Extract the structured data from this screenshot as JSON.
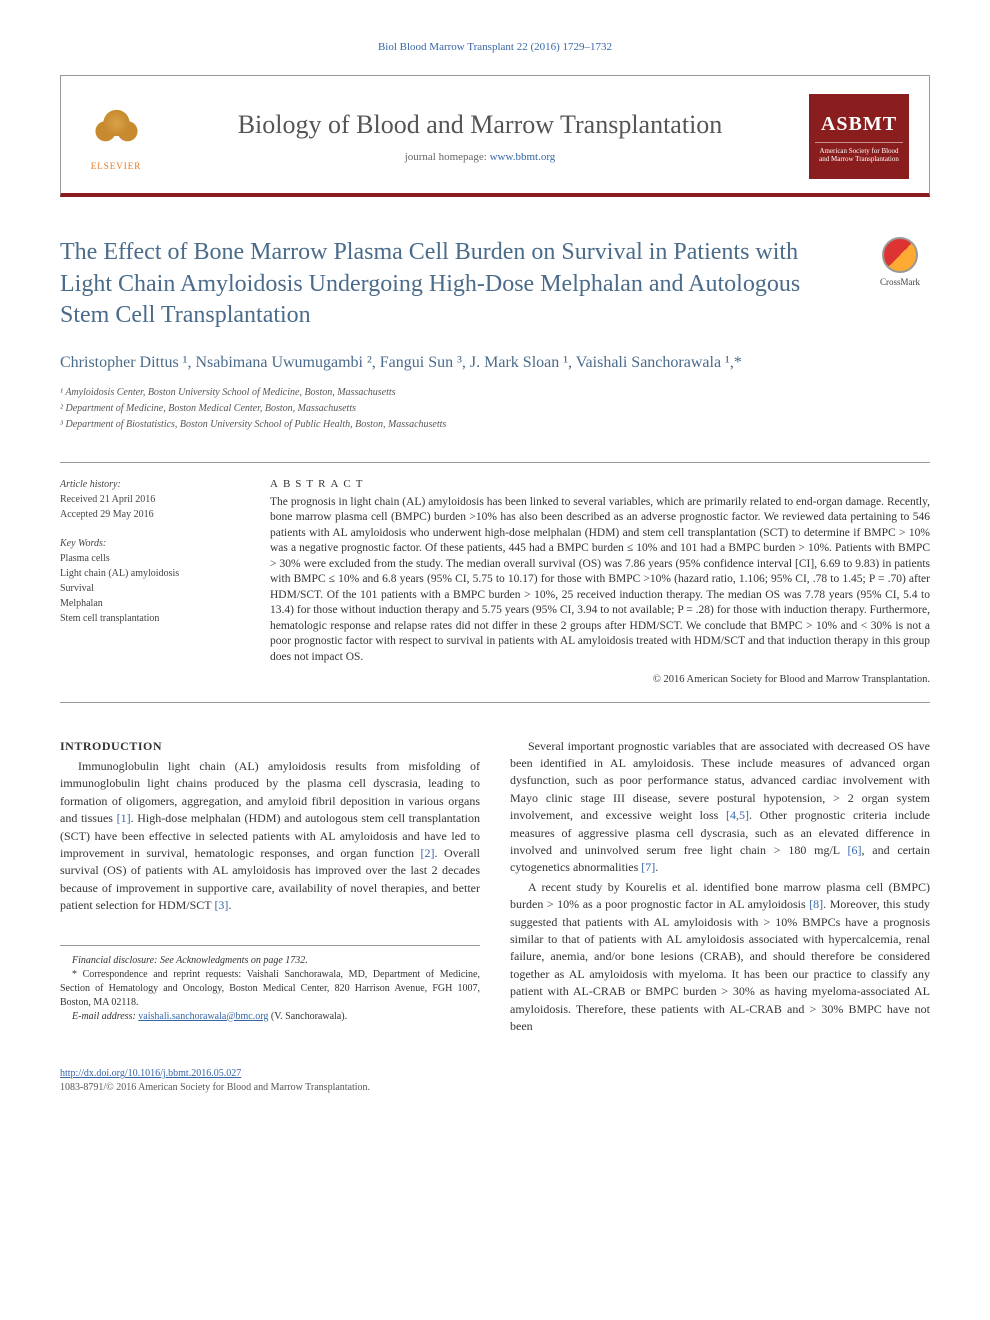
{
  "running_head": "Biol Blood Marrow Transplant 22 (2016) 1729–1732",
  "header": {
    "elsevier": "ELSEVIER",
    "journal_title": "Biology of Blood and Marrow Transplantation",
    "homepage_label": "journal homepage: ",
    "homepage_url": "www.bbmt.org",
    "asbmt_abbrev": "ASBMT",
    "asbmt_full": "American Society for Blood and Marrow Transplantation"
  },
  "crossmark_label": "CrossMark",
  "article": {
    "title": "The Effect of Bone Marrow Plasma Cell Burden on Survival in Patients with Light Chain Amyloidosis Undergoing High-Dose Melphalan and Autologous Stem Cell Transplantation",
    "authors_html": "Christopher Dittus ¹, Nsabimana Uwumugambi ², Fangui Sun ³, J. Mark Sloan ¹, Vaishali Sanchorawala ¹,*",
    "affiliations": [
      "¹ Amyloidosis Center, Boston University School of Medicine, Boston, Massachusetts",
      "² Department of Medicine, Boston Medical Center, Boston, Massachusetts",
      "³ Department of Biostatistics, Boston University School of Public Health, Boston, Massachusetts"
    ]
  },
  "meta": {
    "history_label": "Article history:",
    "received": "Received 21 April 2016",
    "accepted": "Accepted 29 May 2016",
    "keywords_label": "Key Words:",
    "keywords": [
      "Plasma cells",
      "Light chain (AL) amyloidosis",
      "Survival",
      "Melphalan",
      "Stem cell transplantation"
    ]
  },
  "abstract": {
    "head": "ABSTRACT",
    "text": "The prognosis in light chain (AL) amyloidosis has been linked to several variables, which are primarily related to end-organ damage. Recently, bone marrow plasma cell (BMPC) burden >10% has also been described as an adverse prognostic factor. We reviewed data pertaining to 546 patients with AL amyloidosis who underwent high-dose melphalan (HDM) and stem cell transplantation (SCT) to determine if BMPC > 10% was a negative prognostic factor. Of these patients, 445 had a BMPC burden ≤ 10% and 101 had a BMPC burden > 10%. Patients with BMPC > 30% were excluded from the study. The median overall survival (OS) was 7.86 years (95% confidence interval [CI], 6.69 to 9.83) in patients with BMPC ≤ 10% and 6.8 years (95% CI, 5.75 to 10.17) for those with BMPC >10% (hazard ratio, 1.106; 95% CI, .78 to 1.45; P = .70) after HDM/SCT. Of the 101 patients with a BMPC burden > 10%, 25 received induction therapy. The median OS was 7.78 years (95% CI, 5.4 to 13.4) for those without induction therapy and 5.75 years (95% CI, 3.94 to not available; P = .28) for those with induction therapy. Furthermore, hematologic response and relapse rates did not differ in these 2 groups after HDM/SCT. We conclude that BMPC > 10% and < 30% is not a poor prognostic factor with respect to survival in patients with AL amyloidosis treated with HDM/SCT and that induction therapy in this group does not impact OS.",
    "copyright": "© 2016 American Society for Blood and Marrow Transplantation."
  },
  "body": {
    "intro_head": "INTRODUCTION",
    "left_paras": [
      "Immunoglobulin light chain (AL) amyloidosis results from misfolding of immunoglobulin light chains produced by the plasma cell dyscrasia, leading to formation of oligomers, aggregation, and amyloid fibril deposition in various organs and tissues [1]. High-dose melphalan (HDM) and autologous stem cell transplantation (SCT) have been effective in selected patients with AL amyloidosis and have led to improvement in survival, hematologic responses, and organ function [2]. Overall survival (OS) of patients with AL amyloidosis has improved over the last 2 decades because of improvement in supportive care, availability of novel therapies, and better patient selection for HDM/SCT [3]."
    ],
    "right_paras": [
      "Several important prognostic variables that are associated with decreased OS have been identified in AL amyloidosis. These include measures of advanced organ dysfunction, such as poor performance status, advanced cardiac involvement with Mayo clinic stage III disease, severe postural hypotension, > 2 organ system involvement, and excessive weight loss [4,5]. Other prognostic criteria include measures of aggressive plasma cell dyscrasia, such as an elevated difference in involved and uninvolved serum free light chain > 180 mg/L [6], and certain cytogenetics abnormalities [7].",
      "A recent study by Kourelis et al. identified bone marrow plasma cell (BMPC) burden > 10% as a poor prognostic factor in AL amyloidosis [8]. Moreover, this study suggested that patients with AL amyloidosis with > 10% BMPCs have a prognosis similar to that of patients with AL amyloidosis associated with hypercalcemia, renal failure, anemia, and/or bone lesions (CRAB), and should therefore be considered together as AL amyloidosis with myeloma. It has been our practice to classify any patient with AL-CRAB or BMPC burden > 30% as having myeloma-associated AL amyloidosis. Therefore, these patients with AL-CRAB and > 30% BMPC have not been"
    ]
  },
  "footnotes": {
    "financial": "Financial disclosure: See Acknowledgments on page 1732.",
    "correspondence": "* Correspondence and reprint requests: Vaishali Sanchorawala, MD, Department of Medicine, Section of Hematology and Oncology, Boston Medical Center, 820 Harrison Avenue, FGH 1007, Boston, MA 02118.",
    "email_label": "E-mail address: ",
    "email": "vaishali.sanchorawala@bmc.org",
    "email_suffix": " (V. Sanchorawala)."
  },
  "bottom": {
    "doi": "http://dx.doi.org/10.1016/j.bbmt.2016.05.027",
    "issn_line": "1083-8791/© 2016 American Society for Blood and Marrow Transplantation."
  },
  "colors": {
    "link": "#3766a6",
    "accent": "#8a1d1d",
    "title": "#4a6b8a"
  }
}
